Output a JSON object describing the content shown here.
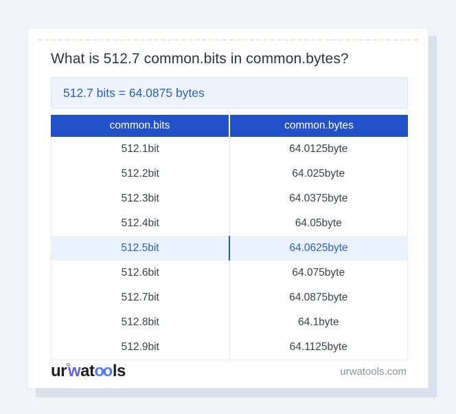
{
  "card": {
    "title": "What is 512.7 common.bits in common.bytes?",
    "result": "512.7 bits = 64.0875 bytes"
  },
  "table": {
    "headers": [
      "common.bits",
      "common.bytes"
    ],
    "rows": [
      {
        "bits": "512.1bit",
        "bytes": "64.0125byte"
      },
      {
        "bits": "512.2bit",
        "bytes": "64.025byte"
      },
      {
        "bits": "512.3bit",
        "bytes": "64.0375byte"
      },
      {
        "bits": "512.4bit",
        "bytes": "64.05byte"
      },
      {
        "bits": "512.5bit",
        "bytes": "64.0625byte"
      },
      {
        "bits": "512.6bit",
        "bytes": "64.075byte"
      },
      {
        "bits": "512.7bit",
        "bytes": "64.0875byte"
      },
      {
        "bits": "512.8bit",
        "bytes": "64.1byte"
      },
      {
        "bits": "512.9bit",
        "bytes": "64.1125byte"
      }
    ],
    "highlighted_row_index": 4
  },
  "footer": {
    "logo": {
      "ur": "ur",
      "w": "w",
      "at": "at",
      "oo": "oo",
      "ls": "ls"
    },
    "website": "urwatools.com"
  },
  "colors": {
    "header_bg": "#2252c9",
    "accent_text": "#2a5fbe",
    "result_bg": "#edf4fd",
    "result_border": "#d8e5f5",
    "highlight_bg": "#e9f2fd",
    "highlight_divider": "#2456b8",
    "logo_blue": "#5d5fef",
    "logo_oo_blue": "#4e7cf1",
    "page_bg": "#f2f4f9",
    "card_shadow": "#dbe0ed"
  }
}
